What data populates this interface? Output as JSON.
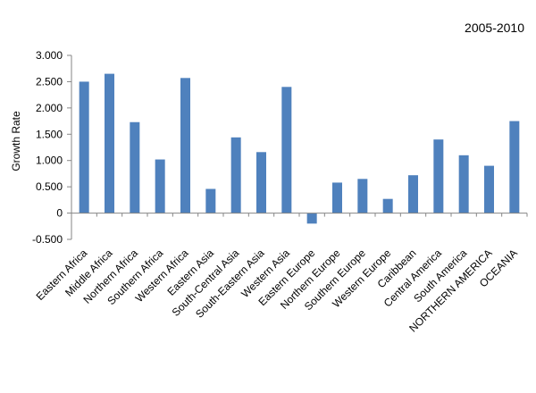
{
  "chart_data": {
    "type": "bar",
    "title": "2005-2010",
    "xlabel": "",
    "ylabel": "Growth Rate",
    "ylim": [
      -0.5,
      3.0
    ],
    "yticks": [
      3.0,
      2.5,
      2.0,
      1.5,
      1.0,
      0.5,
      0,
      -0.5
    ],
    "ytick_labels": [
      "3.000",
      "2.500",
      "2.000",
      "1.500",
      "1.000",
      "0.500",
      "0",
      "-0.500"
    ],
    "grid": false,
    "legend": "none",
    "bar_color": "#4f81bd",
    "categories": [
      "Eastern Africa",
      "Middle Africa",
      "Northern Africa",
      "Southern Africa",
      "Western Africa",
      "Eastern Asia",
      "South-Central Asia",
      "South-Eastern Asia",
      "Western Asia",
      "Eastern Europe",
      "Northern Europe",
      "Southern Europe",
      "Western Europe",
      "Caribbean",
      "Central America",
      "South America",
      "NORTHERN AMERICA",
      "OCEANIA"
    ],
    "values": [
      2.5,
      2.65,
      1.73,
      1.02,
      2.57,
      0.46,
      1.44,
      1.16,
      2.4,
      -0.2,
      0.58,
      0.65,
      0.27,
      0.72,
      1.4,
      1.1,
      0.9,
      1.75
    ]
  }
}
